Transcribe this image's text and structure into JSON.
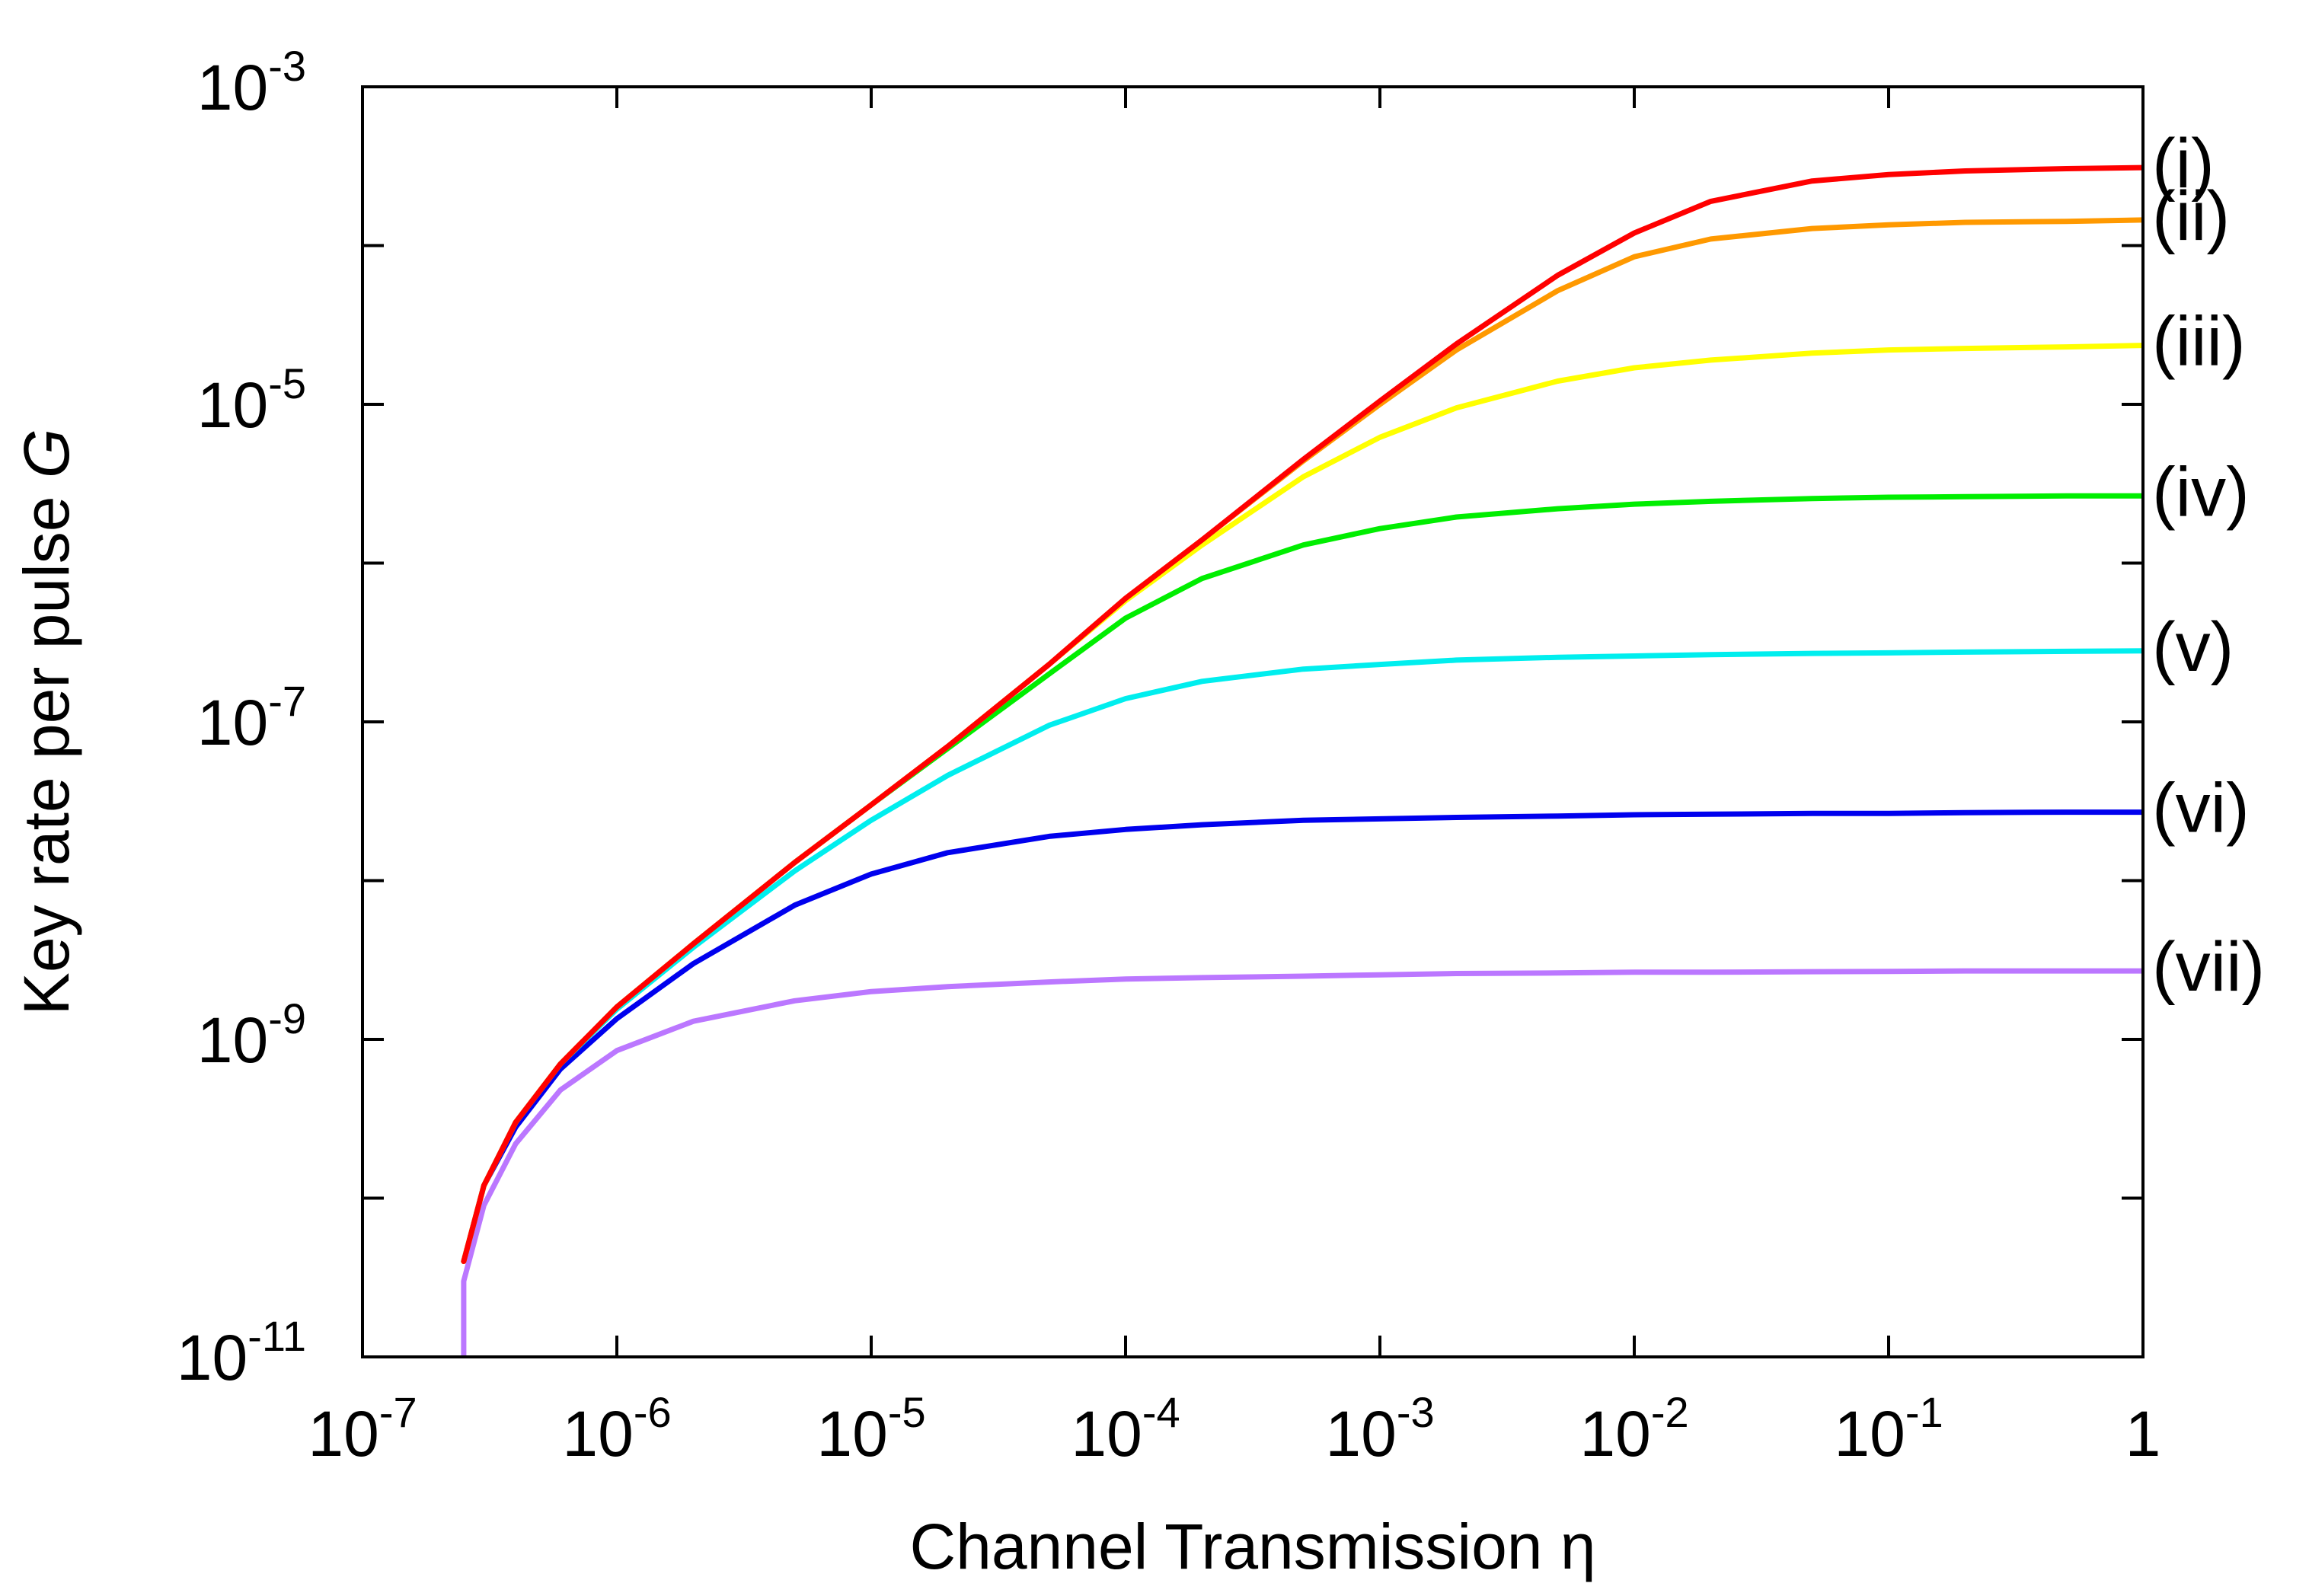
{
  "chart_data": {
    "type": "line",
    "xlabel": "Channel Transmission η",
    "ylabel_main": "Key rate per pulse ",
    "ylabel_var": "G",
    "xscale": "log",
    "yscale": "log",
    "xlim": [
      1e-07,
      1
    ],
    "ylim": [
      1e-11,
      0.001
    ],
    "grid": false,
    "x_ticks": [
      {
        "value": 1e-07,
        "base": "10",
        "exp": "-7"
      },
      {
        "value": 1e-06,
        "base": "10",
        "exp": "-6"
      },
      {
        "value": 1e-05,
        "base": "10",
        "exp": "-5"
      },
      {
        "value": 0.0001,
        "base": "10",
        "exp": "-4"
      },
      {
        "value": 0.001,
        "base": "10",
        "exp": "-3"
      },
      {
        "value": 0.01,
        "base": "10",
        "exp": "-2"
      },
      {
        "value": 0.1,
        "base": "10",
        "exp": "-1"
      },
      {
        "value": 1,
        "base": "1",
        "exp": ""
      }
    ],
    "y_ticks": [
      {
        "value": 1e-11,
        "base": "10",
        "exp": "-11"
      },
      {
        "value": 1e-09,
        "base": "10",
        "exp": "-9"
      },
      {
        "value": 1e-07,
        "base": "10",
        "exp": "-7"
      },
      {
        "value": 1e-05,
        "base": "10",
        "exp": "-5"
      },
      {
        "value": 0.001,
        "base": "10",
        "exp": "-3"
      }
    ],
    "y_minor_ticks": [
      1e-10,
      1e-08,
      1e-06,
      0.0001
    ],
    "series": [
      {
        "name": "(i)",
        "color": "#ff0000",
        "x": [
          2.5e-07,
          3e-07,
          4e-07,
          6e-07,
          1e-06,
          2e-06,
          5e-06,
          1e-05,
          2e-05,
          5e-05,
          0.0001,
          0.0002,
          0.0005,
          0.001,
          0.002,
          0.005,
          0.01,
          0.02,
          0.05,
          0.1,
          0.2,
          0.5,
          1
        ],
        "y": [
          4e-11,
          1.2e-10,
          3e-10,
          7e-10,
          1.6e-09,
          4e-09,
          1.3e-08,
          3e-08,
          7e-08,
          2.3e-07,
          6e-07,
          1.4e-06,
          4.5e-06,
          1.05e-05,
          2.4e-05,
          6.5e-05,
          0.00012,
          0.00019,
          0.000255,
          0.00028,
          0.000295,
          0.000305,
          0.00031
        ]
      },
      {
        "name": "(ii)",
        "color": "#ff9900",
        "x": [
          2.5e-07,
          3e-07,
          4e-07,
          6e-07,
          1e-06,
          2e-06,
          5e-06,
          1e-05,
          2e-05,
          5e-05,
          0.0001,
          0.0002,
          0.0005,
          0.001,
          0.002,
          0.005,
          0.01,
          0.02,
          0.05,
          0.1,
          0.2,
          0.5,
          1
        ],
        "y": [
          4e-11,
          1.2e-10,
          3e-10,
          7e-10,
          1.6e-09,
          4e-09,
          1.3e-08,
          3e-08,
          7e-08,
          2.3e-07,
          6e-07,
          1.4e-06,
          4.4e-06,
          1e-05,
          2.2e-05,
          5.2e-05,
          8.5e-05,
          0.00011,
          0.000128,
          0.000135,
          0.00014,
          0.000142,
          0.000145
        ]
      },
      {
        "name": "(iii)",
        "color": "#ffff00",
        "x": [
          2.5e-07,
          3e-07,
          4e-07,
          6e-07,
          1e-06,
          2e-06,
          5e-06,
          1e-05,
          2e-05,
          5e-05,
          0.0001,
          0.0002,
          0.0005,
          0.001,
          0.002,
          0.005,
          0.01,
          0.02,
          0.05,
          0.1,
          0.2,
          0.5,
          1
        ],
        "y": [
          4e-11,
          1.2e-10,
          3e-10,
          7e-10,
          1.6e-09,
          4e-09,
          1.3e-08,
          3e-08,
          7e-08,
          2.3e-07,
          5.8e-07,
          1.3e-06,
          3.5e-06,
          6.2e-06,
          9.5e-06,
          1.4e-05,
          1.7e-05,
          1.9e-05,
          2.1e-05,
          2.2e-05,
          2.25e-05,
          2.3e-05,
          2.35e-05
        ]
      },
      {
        "name": "(iv)",
        "color": "#00ee00",
        "x": [
          2.5e-07,
          3e-07,
          4e-07,
          6e-07,
          1e-06,
          2e-06,
          5e-06,
          1e-05,
          2e-05,
          5e-05,
          0.0001,
          0.0002,
          0.0005,
          0.001,
          0.002,
          0.005,
          0.01,
          0.02,
          0.05,
          0.1,
          0.2,
          0.5,
          1
        ],
        "y": [
          4e-11,
          1.2e-10,
          3e-10,
          7e-10,
          1.6e-09,
          4e-09,
          1.3e-08,
          3e-08,
          6.8e-08,
          2e-07,
          4.5e-07,
          8e-07,
          1.3e-06,
          1.65e-06,
          1.95e-06,
          2.2e-06,
          2.35e-06,
          2.45e-06,
          2.55e-06,
          2.6e-06,
          2.62e-06,
          2.65e-06,
          2.65e-06
        ]
      },
      {
        "name": "(v)",
        "color": "#00eeee",
        "x": [
          2.5e-07,
          3e-07,
          4e-07,
          6e-07,
          1e-06,
          2e-06,
          5e-06,
          1e-05,
          2e-05,
          5e-05,
          0.0001,
          0.0002,
          0.0005,
          0.001,
          0.002,
          0.005,
          0.01,
          0.02,
          0.05,
          0.1,
          0.2,
          0.5,
          1
        ],
        "y": [
          4e-11,
          1.2e-10,
          3e-10,
          7e-10,
          1.55e-09,
          3.8e-09,
          1.15e-08,
          2.4e-08,
          4.6e-08,
          9.5e-08,
          1.4e-07,
          1.8e-07,
          2.15e-07,
          2.3e-07,
          2.45e-07,
          2.55e-07,
          2.6e-07,
          2.65e-07,
          2.7e-07,
          2.72e-07,
          2.75e-07,
          2.78e-07,
          2.8e-07
        ]
      },
      {
        "name": "(vi)",
        "color": "#0000ee",
        "x": [
          2.5e-07,
          3e-07,
          4e-07,
          6e-07,
          1e-06,
          2e-06,
          5e-06,
          1e-05,
          2e-05,
          5e-05,
          0.0001,
          0.0002,
          0.0005,
          0.001,
          0.002,
          0.005,
          0.01,
          0.02,
          0.05,
          0.1,
          0.2,
          0.5,
          1
        ],
        "y": [
          4e-11,
          1.2e-10,
          2.8e-10,
          6.5e-10,
          1.35e-09,
          3e-09,
          7e-09,
          1.1e-08,
          1.5e-08,
          1.9e-08,
          2.1e-08,
          2.25e-08,
          2.4e-08,
          2.45e-08,
          2.5e-08,
          2.55e-08,
          2.6e-08,
          2.62e-08,
          2.65e-08,
          2.65e-08,
          2.68e-08,
          2.7e-08,
          2.7e-08
        ]
      },
      {
        "name": "(vii)",
        "color": "#bb77ff",
        "x": [
          2.5e-07,
          2.5e-07,
          3e-07,
          4e-07,
          6e-07,
          1e-06,
          2e-06,
          5e-06,
          1e-05,
          2e-05,
          5e-05,
          0.0001,
          0.0002,
          0.0005,
          0.001,
          0.002,
          0.005,
          0.01,
          0.02,
          0.05,
          0.1,
          0.2,
          0.5,
          1
        ],
        "y": [
          1e-11,
          3e-11,
          9e-11,
          2.2e-10,
          4.8e-10,
          8.5e-10,
          1.3e-09,
          1.75e-09,
          2e-09,
          2.15e-09,
          2.3e-09,
          2.4e-09,
          2.45e-09,
          2.5e-09,
          2.55e-09,
          2.6e-09,
          2.62e-09,
          2.65e-09,
          2.65e-09,
          2.67e-09,
          2.68e-09,
          2.7e-09,
          2.7e-09,
          2.7e-09
        ]
      }
    ]
  }
}
